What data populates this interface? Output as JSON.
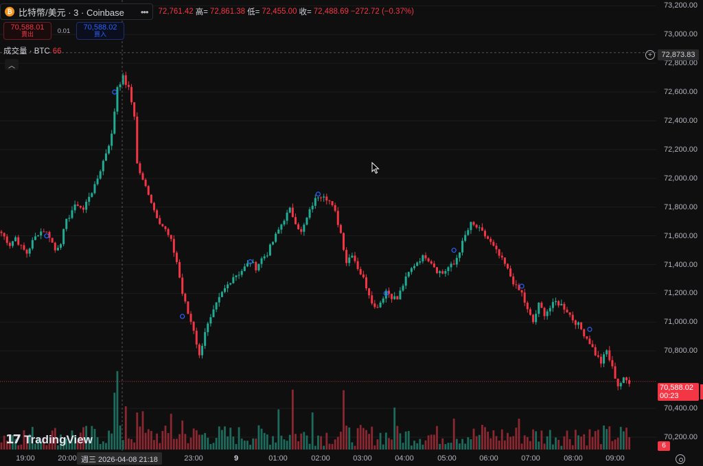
{
  "header": {
    "coin_glyph": "₿",
    "symbol_title": "比特幣/美元 · 3 · Coinbase",
    "menu_dots": "•••",
    "open_partial": "72,761.42",
    "high_label": "高=",
    "high_value": "72,861.38",
    "low_label": "低=",
    "low_value": "72,455.00",
    "close_label": "收=",
    "close_value": "72,488.69",
    "change": "−272.72 (−0.37%)"
  },
  "trade": {
    "sell_price": "70,588.01",
    "sell_label": "賣出",
    "spread": "0.01",
    "buy_price": "70,588.02",
    "buy_label": "買入"
  },
  "volume_legend": {
    "label": "成交量 · BTC",
    "value": "66"
  },
  "collapse_glyph": "︿",
  "price_axis": {
    "ticks": [
      "73,200.00",
      "73,000.00",
      "72,800.00",
      "72,600.00",
      "72,400.00",
      "72,200.00",
      "72,000.00",
      "71,800.00",
      "71,600.00",
      "71,400.00",
      "71,200.00",
      "71,000.00",
      "70,800.00",
      "70,400.00",
      "70,200.00"
    ],
    "hover_price": "72,873.83",
    "last_price": "70,588.02",
    "countdown": "00:23",
    "volume_tag": "6"
  },
  "time_axis": {
    "labels": [
      {
        "text": "19:00",
        "bold": false
      },
      {
        "text": "20:00",
        "bold": false
      },
      {
        "text": "23:00",
        "bold": false
      },
      {
        "text": "9",
        "bold": true
      },
      {
        "text": "01:00",
        "bold": false
      },
      {
        "text": "02:00",
        "bold": false
      },
      {
        "text": "03:00",
        "bold": false
      },
      {
        "text": "04:00",
        "bold": false
      },
      {
        "text": "05:00",
        "bold": false
      },
      {
        "text": "06:00",
        "bold": false
      },
      {
        "text": "07:00",
        "bold": false
      },
      {
        "text": "08:00",
        "bold": false
      },
      {
        "text": "09:00",
        "bold": false
      }
    ],
    "cursor_label": "週三 2026-04-08   21:18"
  },
  "watermark": {
    "logo": "17",
    "name": "TradingView"
  },
  "colors": {
    "up": "#22ab94",
    "down": "#f23645",
    "background": "#0f0f0f",
    "grid": "#1c1c1c"
  },
  "icons": {
    "plus": "plus-icon",
    "settings": "settings-icon",
    "cursor": "mouse-cursor-icon"
  },
  "chart_data": {
    "type": "candlestick",
    "interval": "3m",
    "ylim": [
      70100,
      73240
    ],
    "price_path": [
      [
        0,
        71620
      ],
      [
        3,
        71540
      ],
      [
        5,
        71590
      ],
      [
        7,
        71520
      ],
      [
        9,
        71480
      ],
      [
        11,
        71560
      ],
      [
        13,
        71620
      ],
      [
        15,
        71640
      ],
      [
        17,
        71600
      ],
      [
        19,
        71500
      ],
      [
        21,
        71560
      ],
      [
        23,
        71700
      ],
      [
        25,
        71780
      ],
      [
        27,
        71820
      ],
      [
        29,
        71780
      ],
      [
        31,
        71880
      ],
      [
        33,
        71940
      ],
      [
        35,
        72060
      ],
      [
        37,
        72180
      ],
      [
        39,
        72300
      ],
      [
        41,
        72640
      ],
      [
        43,
        72700
      ],
      [
        45,
        72620
      ],
      [
        47,
        72440
      ],
      [
        48,
        72100
      ],
      [
        50,
        71980
      ],
      [
        52,
        71900
      ],
      [
        54,
        71780
      ],
      [
        56,
        71700
      ],
      [
        58,
        71640
      ],
      [
        60,
        71560
      ],
      [
        62,
        71420
      ],
      [
        64,
        71200
      ],
      [
        66,
        71060
      ],
      [
        68,
        70950
      ],
      [
        70,
        70760
      ],
      [
        72,
        70940
      ],
      [
        74,
        71020
      ],
      [
        76,
        71120
      ],
      [
        78,
        71200
      ],
      [
        80,
        71260
      ],
      [
        82,
        71320
      ],
      [
        84,
        71340
      ],
      [
        86,
        71380
      ],
      [
        88,
        71420
      ],
      [
        90,
        71380
      ],
      [
        92,
        71440
      ],
      [
        94,
        71480
      ],
      [
        96,
        71560
      ],
      [
        98,
        71640
      ],
      [
        100,
        71720
      ],
      [
        102,
        71780
      ],
      [
        104,
        71700
      ],
      [
        106,
        71620
      ],
      [
        108,
        71720
      ],
      [
        110,
        71820
      ],
      [
        112,
        71880
      ],
      [
        114,
        71890
      ],
      [
        116,
        71840
      ],
      [
        118,
        71760
      ],
      [
        120,
        71620
      ],
      [
        122,
        71420
      ],
      [
        124,
        71480
      ],
      [
        126,
        71380
      ],
      [
        128,
        71300
      ],
      [
        130,
        71200
      ],
      [
        132,
        71100
      ],
      [
        134,
        71140
      ],
      [
        136,
        71220
      ],
      [
        138,
        71180
      ],
      [
        140,
        71160
      ],
      [
        142,
        71260
      ],
      [
        144,
        71340
      ],
      [
        146,
        71400
      ],
      [
        148,
        71440
      ],
      [
        150,
        71460
      ],
      [
        152,
        71420
      ],
      [
        154,
        71360
      ],
      [
        156,
        71340
      ],
      [
        158,
        71380
      ],
      [
        160,
        71400
      ],
      [
        162,
        71500
      ],
      [
        164,
        71600
      ],
      [
        166,
        71680
      ],
      [
        168,
        71660
      ],
      [
        170,
        71620
      ],
      [
        172,
        71580
      ],
      [
        174,
        71520
      ],
      [
        176,
        71460
      ],
      [
        178,
        71400
      ],
      [
        180,
        71320
      ],
      [
        182,
        71240
      ],
      [
        184,
        71200
      ],
      [
        186,
        71080
      ],
      [
        188,
        71000
      ],
      [
        190,
        71120
      ],
      [
        192,
        71060
      ],
      [
        194,
        71100
      ],
      [
        196,
        71140
      ],
      [
        198,
        71120
      ],
      [
        200,
        71080
      ],
      [
        202,
        71020
      ],
      [
        204,
        70980
      ],
      [
        206,
        70920
      ],
      [
        208,
        70860
      ],
      [
        210,
        70780
      ],
      [
        212,
        70720
      ],
      [
        214,
        70800
      ],
      [
        216,
        70680
      ],
      [
        218,
        70560
      ],
      [
        220,
        70600
      ],
      [
        222,
        70588
      ]
    ],
    "volume_spikes": [
      [
        40,
        92
      ],
      [
        41,
        127
      ],
      [
        44,
        70
      ],
      [
        48,
        60
      ],
      [
        50,
        62
      ],
      [
        60,
        58
      ],
      [
        64,
        47
      ],
      [
        98,
        65
      ],
      [
        103,
        97
      ],
      [
        110,
        60
      ],
      [
        121,
        96
      ],
      [
        139,
        68
      ],
      [
        160,
        50
      ],
      [
        170,
        40
      ],
      [
        183,
        50
      ],
      [
        203,
        32
      ]
    ],
    "markers": [
      [
        16,
        71600
      ],
      [
        40,
        72600
      ],
      [
        64,
        71040
      ],
      [
        88,
        71420
      ],
      [
        112,
        71890
      ],
      [
        136,
        71200
      ],
      [
        160,
        71500
      ],
      [
        184,
        71250
      ],
      [
        208,
        70950
      ]
    ]
  }
}
